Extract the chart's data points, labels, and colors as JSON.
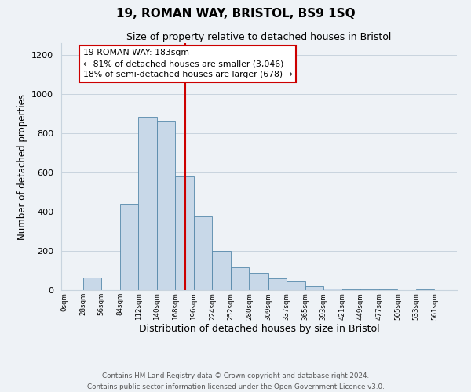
{
  "title": "19, ROMAN WAY, BRISTOL, BS9 1SQ",
  "subtitle": "Size of property relative to detached houses in Bristol",
  "xlabel": "Distribution of detached houses by size in Bristol",
  "ylabel": "Number of detached properties",
  "bin_labels": [
    "0sqm",
    "28sqm",
    "56sqm",
    "84sqm",
    "112sqm",
    "140sqm",
    "168sqm",
    "196sqm",
    "224sqm",
    "252sqm",
    "280sqm",
    "309sqm",
    "337sqm",
    "365sqm",
    "393sqm",
    "421sqm",
    "449sqm",
    "477sqm",
    "505sqm",
    "533sqm",
    "561sqm"
  ],
  "bin_edges": [
    0,
    28,
    56,
    84,
    112,
    140,
    168,
    196,
    224,
    252,
    280,
    309,
    337,
    365,
    393,
    421,
    449,
    477,
    505,
    533,
    561,
    589
  ],
  "bar_heights": [
    0,
    65,
    0,
    440,
    885,
    865,
    580,
    375,
    200,
    115,
    90,
    60,
    45,
    20,
    10,
    5,
    5,
    5,
    0,
    5,
    0
  ],
  "bar_color": "#c8d8e8",
  "bar_edgecolor": "#5588aa",
  "vline_x": 183,
  "vline_color": "#cc0000",
  "annotation_text": "19 ROMAN WAY: 183sqm\n← 81% of detached houses are smaller (3,046)\n18% of semi-detached houses are larger (678) →",
  "annotation_box_facecolor": "#ffffff",
  "annotation_box_edgecolor": "#cc0000",
  "ylim": [
    0,
    1260
  ],
  "yticks": [
    0,
    200,
    400,
    600,
    800,
    1000,
    1200
  ],
  "footer_line1": "Contains HM Land Registry data © Crown copyright and database right 2024.",
  "footer_line2": "Contains public sector information licensed under the Open Government Licence v3.0.",
  "grid_color": "#c8d4de",
  "background_color": "#eef2f6"
}
